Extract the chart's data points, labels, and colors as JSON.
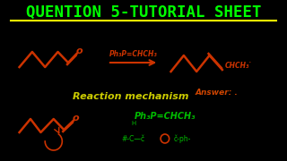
{
  "background_color": "#000000",
  "title_text": "QUENTION 5-TUTORIAL SHEET",
  "title_color": "#00ff00",
  "title_underline_color": "#ffff00",
  "title_fontsize": 12.5,
  "subtitle_text": "Reaction mechanism",
  "subtitle_color": "#cccc00",
  "answer_text": "Answer: .",
  "answer_color": "#cc4400",
  "reagent_top": "Ph₃P=CHCH₃",
  "reagent_top_color": "#cc3300",
  "reagent_bottom": "Ph₃P=CHCH₃",
  "reagent_bottom_color": "#00bb00",
  "arrow_color": "#cc3300",
  "struct_color": "#cc3300",
  "bottom_struct_color": "#cc3300",
  "bottom_green_color": "#00bb00"
}
